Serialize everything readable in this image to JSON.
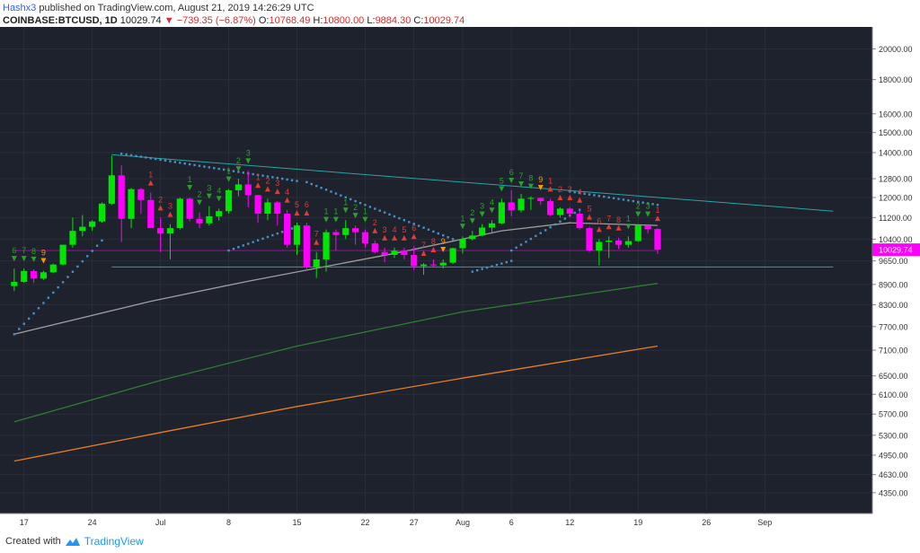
{
  "header": {
    "author": "Hashx3",
    "published": "published on TradingView.com, August 21, 2019 14:26:29 UTC",
    "symbol": "COINBASE:BTCUSD, 1D",
    "last": "10029.74",
    "change_arrow": "▼",
    "change": "−739.35 (−6.87%)",
    "o_label": "O:",
    "o_value": "10768.49",
    "h_label": "H:",
    "h_value": "10800.00",
    "l_label": "L:",
    "l_value": "9884.30",
    "c_label": "C:",
    "c_value": "10029.74"
  },
  "footer": {
    "created_with": "Created with",
    "brand": "TradingView"
  },
  "colors": {
    "background": "#1e222d",
    "up": "#00e600",
    "down": "#ff00ff",
    "td_buy": "#2e9e2e",
    "td_sell": "#e53935",
    "td_nine": "#ff9800",
    "sma_short": "#9e9e9e",
    "sma_mid": "#2e7d32",
    "sma_long": "#e67e22",
    "psar": "#4a90c8",
    "trendline": "#26a6a6",
    "price_tag": "#ff00ff"
  },
  "chart_data": {
    "type": "candlestick",
    "symbol": "COINBASE:BTCUSD",
    "interval": "1D",
    "y_scale": "log",
    "ylim": [
      4050,
      21500
    ],
    "y_ticks": [
      "20000.00",
      "18000.00",
      "16000.00",
      "15000.00",
      "14000.00",
      "12800.00",
      "12000.00",
      "11200.00",
      "10400.00",
      "9650.00",
      "8900.00",
      "8300.00",
      "7700.00",
      "7100.00",
      "6500.00",
      "6100.00",
      "5700.00",
      "5300.00",
      "4950.00",
      "4630.00",
      "4350.00"
    ],
    "x_ticks": [
      "17",
      "24",
      "Jul",
      "8",
      "15",
      "22",
      "27",
      "Aug",
      "6",
      "12",
      "19",
      "26",
      "Sep"
    ],
    "last_price_label": "10029.74",
    "candles": [
      {
        "date": "2019-06-16",
        "o": 8850,
        "h": 9400,
        "l": 8700,
        "c": 8980
      },
      {
        "date": "2019-06-17",
        "o": 8980,
        "h": 9400,
        "l": 8950,
        "c": 9320
      },
      {
        "date": "2019-06-18",
        "o": 9320,
        "h": 9380,
        "l": 8950,
        "c": 9080
      },
      {
        "date": "2019-06-19",
        "o": 9080,
        "h": 9330,
        "l": 9040,
        "c": 9280
      },
      {
        "date": "2019-06-20",
        "o": 9280,
        "h": 9560,
        "l": 9250,
        "c": 9530
      },
      {
        "date": "2019-06-21",
        "o": 9530,
        "h": 10200,
        "l": 9510,
        "c": 10200
      },
      {
        "date": "2019-06-22",
        "o": 10200,
        "h": 11200,
        "l": 10100,
        "c": 10700
      },
      {
        "date": "2019-06-23",
        "o": 10700,
        "h": 11300,
        "l": 10500,
        "c": 10850
      },
      {
        "date": "2019-06-24",
        "o": 10850,
        "h": 11100,
        "l": 10700,
        "c": 11050
      },
      {
        "date": "2019-06-25",
        "o": 11050,
        "h": 11800,
        "l": 11000,
        "c": 11750
      },
      {
        "date": "2019-06-26",
        "o": 11750,
        "h": 13850,
        "l": 11700,
        "c": 12950
      },
      {
        "date": "2019-06-27",
        "o": 12950,
        "h": 13400,
        "l": 10300,
        "c": 11150
      },
      {
        "date": "2019-06-28",
        "o": 11150,
        "h": 12400,
        "l": 10800,
        "c": 12350
      },
      {
        "date": "2019-06-29",
        "o": 12350,
        "h": 12400,
        "l": 11350,
        "c": 11900
      },
      {
        "date": "2019-06-30",
        "o": 11900,
        "h": 12200,
        "l": 10800,
        "c": 10800
      },
      {
        "date": "2019-07-01",
        "o": 10800,
        "h": 11200,
        "l": 9950,
        "c": 10600
      },
      {
        "date": "2019-07-02",
        "o": 10600,
        "h": 10950,
        "l": 9700,
        "c": 10800
      },
      {
        "date": "2019-07-03",
        "o": 10800,
        "h": 12000,
        "l": 10750,
        "c": 11950
      },
      {
        "date": "2019-07-04",
        "o": 11950,
        "h": 12000,
        "l": 11050,
        "c": 11150
      },
      {
        "date": "2019-07-05",
        "o": 11150,
        "h": 11400,
        "l": 10800,
        "c": 10980
      },
      {
        "date": "2019-07-06",
        "o": 10980,
        "h": 11650,
        "l": 10900,
        "c": 11250
      },
      {
        "date": "2019-07-07",
        "o": 11250,
        "h": 11550,
        "l": 11080,
        "c": 11450
      },
      {
        "date": "2019-07-08",
        "o": 11450,
        "h": 12350,
        "l": 11350,
        "c": 12300
      },
      {
        "date": "2019-07-09",
        "o": 12300,
        "h": 12800,
        "l": 12050,
        "c": 12550
      },
      {
        "date": "2019-07-10",
        "o": 12550,
        "h": 13150,
        "l": 11600,
        "c": 12100
      },
      {
        "date": "2019-07-11",
        "o": 12100,
        "h": 12100,
        "l": 11000,
        "c": 11350
      },
      {
        "date": "2019-07-12",
        "o": 11350,
        "h": 11950,
        "l": 11100,
        "c": 11800
      },
      {
        "date": "2019-07-13",
        "o": 11800,
        "h": 11850,
        "l": 10900,
        "c": 11350
      },
      {
        "date": "2019-07-14",
        "o": 11350,
        "h": 11500,
        "l": 10100,
        "c": 10200
      },
      {
        "date": "2019-07-15",
        "o": 10200,
        "h": 11000,
        "l": 9850,
        "c": 10900
      },
      {
        "date": "2019-07-16",
        "o": 10900,
        "h": 11000,
        "l": 9350,
        "c": 9450
      },
      {
        "date": "2019-07-17",
        "o": 9450,
        "h": 9950,
        "l": 9100,
        "c": 9700
      },
      {
        "date": "2019-07-18",
        "o": 9700,
        "h": 10750,
        "l": 9300,
        "c": 10650
      },
      {
        "date": "2019-07-19",
        "o": 10650,
        "h": 10750,
        "l": 10000,
        "c": 10550
      },
      {
        "date": "2019-07-20",
        "o": 10550,
        "h": 11100,
        "l": 10400,
        "c": 10800
      },
      {
        "date": "2019-07-21",
        "o": 10800,
        "h": 10900,
        "l": 10200,
        "c": 10650
      },
      {
        "date": "2019-07-22",
        "o": 10650,
        "h": 10750,
        "l": 10100,
        "c": 10250
      },
      {
        "date": "2019-07-23",
        "o": 10250,
        "h": 10350,
        "l": 9900,
        "c": 9950
      },
      {
        "date": "2019-07-24",
        "o": 9950,
        "h": 10100,
        "l": 9600,
        "c": 9850
      },
      {
        "date": "2019-07-25",
        "o": 9850,
        "h": 10100,
        "l": 9750,
        "c": 9990
      },
      {
        "date": "2019-07-26",
        "o": 9990,
        "h": 10100,
        "l": 9700,
        "c": 9850
      },
      {
        "date": "2019-07-27",
        "o": 9850,
        "h": 10150,
        "l": 9350,
        "c": 9480
      },
      {
        "date": "2019-07-28",
        "o": 9480,
        "h": 9580,
        "l": 9200,
        "c": 9530
      },
      {
        "date": "2019-07-29",
        "o": 9530,
        "h": 9700,
        "l": 9450,
        "c": 9500
      },
      {
        "date": "2019-07-30",
        "o": 9500,
        "h": 9700,
        "l": 9400,
        "c": 9590
      },
      {
        "date": "2019-07-31",
        "o": 9590,
        "h": 10100,
        "l": 9550,
        "c": 10080
      },
      {
        "date": "2019-08-01",
        "o": 10080,
        "h": 10500,
        "l": 9900,
        "c": 10400
      },
      {
        "date": "2019-08-02",
        "o": 10400,
        "h": 10700,
        "l": 10350,
        "c": 10530
      },
      {
        "date": "2019-08-03",
        "o": 10530,
        "h": 10950,
        "l": 10500,
        "c": 10820
      },
      {
        "date": "2019-08-04",
        "o": 10820,
        "h": 11100,
        "l": 10600,
        "c": 10980
      },
      {
        "date": "2019-08-05",
        "o": 10980,
        "h": 11950,
        "l": 10950,
        "c": 11800
      },
      {
        "date": "2019-08-06",
        "o": 11800,
        "h": 12300,
        "l": 11250,
        "c": 11480
      },
      {
        "date": "2019-08-07",
        "o": 11480,
        "h": 12150,
        "l": 11400,
        "c": 11950
      },
      {
        "date": "2019-08-08",
        "o": 11950,
        "h": 12050,
        "l": 11500,
        "c": 11980
      },
      {
        "date": "2019-08-09",
        "o": 11980,
        "h": 12000,
        "l": 11700,
        "c": 11850
      },
      {
        "date": "2019-08-10",
        "o": 11850,
        "h": 11950,
        "l": 11250,
        "c": 11300
      },
      {
        "date": "2019-08-11",
        "o": 11300,
        "h": 11600,
        "l": 11200,
        "c": 11550
      },
      {
        "date": "2019-08-12",
        "o": 11550,
        "h": 11600,
        "l": 11250,
        "c": 11350
      },
      {
        "date": "2019-08-13",
        "o": 11350,
        "h": 11500,
        "l": 10750,
        "c": 10800
      },
      {
        "date": "2019-08-14",
        "o": 10800,
        "h": 10850,
        "l": 9950,
        "c": 10000
      },
      {
        "date": "2019-08-15",
        "o": 10000,
        "h": 10400,
        "l": 9500,
        "c": 10300
      },
      {
        "date": "2019-08-16",
        "o": 10300,
        "h": 10500,
        "l": 9750,
        "c": 10350
      },
      {
        "date": "2019-08-17",
        "o": 10350,
        "h": 10450,
        "l": 10050,
        "c": 10200
      },
      {
        "date": "2019-08-18",
        "o": 10200,
        "h": 10500,
        "l": 10100,
        "c": 10330
      },
      {
        "date": "2019-08-19",
        "o": 10330,
        "h": 10950,
        "l": 10300,
        "c": 10900
      },
      {
        "date": "2019-08-20",
        "o": 10900,
        "h": 10950,
        "l": 10600,
        "c": 10768
      },
      {
        "date": "2019-08-21",
        "o": 10768,
        "h": 10800,
        "l": 9884,
        "c": 10029
      }
    ],
    "moving_averages": [
      {
        "color": "sma_short",
        "points": [
          {
            "date": "2019-06-16",
            "v": 7500
          },
          {
            "date": "2019-06-30",
            "v": 8400
          },
          {
            "date": "2019-07-10",
            "v": 9000
          },
          {
            "date": "2019-07-25",
            "v": 9900
          },
          {
            "date": "2019-08-05",
            "v": 10700
          },
          {
            "date": "2019-08-12",
            "v": 11000
          },
          {
            "date": "2019-08-21",
            "v": 10900
          }
        ]
      },
      {
        "color": "sma_mid",
        "points": [
          {
            "date": "2019-06-16",
            "v": 5550
          },
          {
            "date": "2019-07-01",
            "v": 6400
          },
          {
            "date": "2019-07-15",
            "v": 7200
          },
          {
            "date": "2019-08-01",
            "v": 8100
          },
          {
            "date": "2019-08-21",
            "v": 8930
          }
        ]
      },
      {
        "color": "sma_long",
        "points": [
          {
            "date": "2019-06-16",
            "v": 4850
          },
          {
            "date": "2019-07-01",
            "v": 5350
          },
          {
            "date": "2019-07-15",
            "v": 5850
          },
          {
            "date": "2019-08-01",
            "v": 6450
          },
          {
            "date": "2019-08-21",
            "v": 7200
          }
        ]
      }
    ],
    "psar_segments": [
      {
        "start": "2019-06-16",
        "end": "2019-06-25",
        "from": 7500,
        "to": 10350
      },
      {
        "start": "2019-06-27",
        "end": "2019-07-15",
        "from": 13950,
        "to": 12700
      },
      {
        "start": "2019-07-08",
        "end": "2019-07-15",
        "from": 10000,
        "to": 10850
      },
      {
        "start": "2019-07-16",
        "end": "2019-07-31",
        "from": 12650,
        "to": 10400
      },
      {
        "start": "2019-08-02",
        "end": "2019-08-06",
        "from": 9300,
        "to": 9650
      },
      {
        "start": "2019-08-06",
        "end": "2019-08-13",
        "from": 10000,
        "to": 11500
      },
      {
        "start": "2019-08-12",
        "end": "2019-08-21",
        "from": 12250,
        "to": 11700
      }
    ],
    "trendlines": [
      {
        "type": "descending",
        "from": {
          "date": "2019-06-26",
          "v": 13900
        },
        "to": {
          "date": "2019-09-08",
          "v": 11450
        }
      },
      {
        "type": "horizontal",
        "v": 9450,
        "from": "2019-06-26",
        "to": "2019-09-08"
      },
      {
        "type": "horizontal",
        "v": 10000,
        "from": "2019-06-16",
        "to": "2019-08-21"
      }
    ],
    "td_sequential": [
      {
        "date": "2019-06-16",
        "label": "6",
        "dir": "buy"
      },
      {
        "date": "2019-06-17",
        "label": "7",
        "dir": "buy"
      },
      {
        "date": "2019-06-18",
        "label": "8",
        "dir": "buy"
      },
      {
        "date": "2019-06-19",
        "label": "9",
        "dir": "nine"
      },
      {
        "date": "2019-06-30",
        "label": "1",
        "dir": "sell"
      },
      {
        "date": "2019-07-01",
        "label": "2",
        "dir": "sell"
      },
      {
        "date": "2019-07-02",
        "label": "3",
        "dir": "sell"
      },
      {
        "date": "2019-07-04",
        "label": "1",
        "dir": "buy"
      },
      {
        "date": "2019-07-05",
        "label": "2",
        "dir": "buy"
      },
      {
        "date": "2019-07-06",
        "label": "3",
        "dir": "buy"
      },
      {
        "date": "2019-07-07",
        "label": "4",
        "dir": "buy"
      },
      {
        "date": "2019-07-08",
        "label": "1",
        "dir": "buy"
      },
      {
        "date": "2019-07-09",
        "label": "2",
        "dir": "buy"
      },
      {
        "date": "2019-07-10",
        "label": "3",
        "dir": "buy"
      },
      {
        "date": "2019-07-11",
        "label": "1",
        "dir": "sell"
      },
      {
        "date": "2019-07-12",
        "label": "2",
        "dir": "sell"
      },
      {
        "date": "2019-07-13",
        "label": "3",
        "dir": "sell"
      },
      {
        "date": "2019-07-14",
        "label": "4",
        "dir": "sell"
      },
      {
        "date": "2019-07-15",
        "label": "5",
        "dir": "sell"
      },
      {
        "date": "2019-07-16",
        "label": "6",
        "dir": "sell"
      },
      {
        "date": "2019-07-17",
        "label": "7",
        "dir": "sell"
      },
      {
        "date": "2019-07-18",
        "label": "1",
        "dir": "buy"
      },
      {
        "date": "2019-07-19",
        "label": "1",
        "dir": "buy"
      },
      {
        "date": "2019-07-20",
        "label": "1",
        "dir": "buy"
      },
      {
        "date": "2019-07-21",
        "label": "2",
        "dir": "buy"
      },
      {
        "date": "2019-07-22",
        "label": "1",
        "dir": "buy"
      },
      {
        "date": "2019-07-23",
        "label": "2",
        "dir": "sell"
      },
      {
        "date": "2019-07-24",
        "label": "3",
        "dir": "sell"
      },
      {
        "date": "2019-07-25",
        "label": "4",
        "dir": "sell"
      },
      {
        "date": "2019-07-26",
        "label": "5",
        "dir": "sell"
      },
      {
        "date": "2019-07-27",
        "label": "6",
        "dir": "sell"
      },
      {
        "date": "2019-07-28",
        "label": "7",
        "dir": "sell"
      },
      {
        "date": "2019-07-29",
        "label": "8",
        "dir": "sell"
      },
      {
        "date": "2019-07-30",
        "label": "9",
        "dir": "nine"
      },
      {
        "date": "2019-08-01",
        "label": "1",
        "dir": "buy"
      },
      {
        "date": "2019-08-02",
        "label": "2",
        "dir": "buy"
      },
      {
        "date": "2019-08-03",
        "label": "3",
        "dir": "buy"
      },
      {
        "date": "2019-08-04",
        "label": "4",
        "dir": "buy"
      },
      {
        "date": "2019-08-05",
        "label": "5",
        "dir": "buy"
      },
      {
        "date": "2019-08-06",
        "label": "6",
        "dir": "buy"
      },
      {
        "date": "2019-08-07",
        "label": "7",
        "dir": "buy"
      },
      {
        "date": "2019-08-08",
        "label": "8",
        "dir": "buy"
      },
      {
        "date": "2019-08-09",
        "label": "9",
        "dir": "nine"
      },
      {
        "date": "2019-08-10",
        "label": "1",
        "dir": "sell"
      },
      {
        "date": "2019-08-11",
        "label": "2",
        "dir": "sell"
      },
      {
        "date": "2019-08-12",
        "label": "3",
        "dir": "sell"
      },
      {
        "date": "2019-08-13",
        "label": "4",
        "dir": "sell"
      },
      {
        "date": "2019-08-14",
        "label": "5",
        "dir": "sell"
      },
      {
        "date": "2019-08-15",
        "label": "6",
        "dir": "sell"
      },
      {
        "date": "2019-08-16",
        "label": "7",
        "dir": "sell"
      },
      {
        "date": "2019-08-17",
        "label": "8",
        "dir": "sell"
      },
      {
        "date": "2019-08-18",
        "label": "1",
        "dir": "buy"
      },
      {
        "date": "2019-08-19",
        "label": "2",
        "dir": "buy"
      },
      {
        "date": "2019-08-20",
        "label": "3",
        "dir": "buy"
      },
      {
        "date": "2019-08-21",
        "label": "1",
        "dir": "sell"
      }
    ]
  }
}
